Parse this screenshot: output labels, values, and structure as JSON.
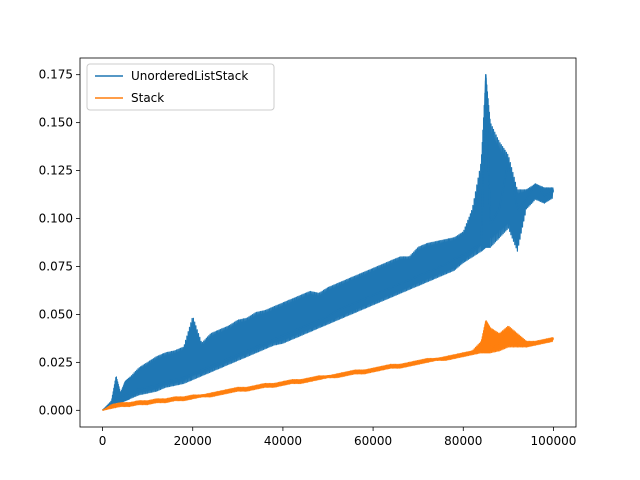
{
  "chart_data": {
    "type": "line",
    "title": "",
    "xlabel": "",
    "ylabel": "",
    "xlim": [
      -5000,
      105000
    ],
    "ylim": [
      -0.0087,
      0.1837
    ],
    "x_ticks": [
      {
        "value": 0,
        "label": "0"
      },
      {
        "value": 20000,
        "label": "20000"
      },
      {
        "value": 40000,
        "label": "40000"
      },
      {
        "value": 60000,
        "label": "60000"
      },
      {
        "value": 80000,
        "label": "80000"
      },
      {
        "value": 100000,
        "label": "100000"
      }
    ],
    "y_ticks": [
      {
        "value": 0.0,
        "label": "0.000"
      },
      {
        "value": 0.025,
        "label": "0.025"
      },
      {
        "value": 0.05,
        "label": "0.050"
      },
      {
        "value": 0.075,
        "label": "0.075"
      },
      {
        "value": 0.1,
        "label": "0.100"
      },
      {
        "value": 0.125,
        "label": "0.125"
      },
      {
        "value": 0.15,
        "label": "0.150"
      },
      {
        "value": 0.175,
        "label": "0.175"
      }
    ],
    "grid": false,
    "legend_position": "top-left",
    "series": [
      {
        "name": "UnorderedListStack",
        "color": "#1f77b4",
        "x": [
          0,
          2000,
          3000,
          4000,
          5000,
          6000,
          8000,
          10000,
          12000,
          14000,
          16000,
          18000,
          20000,
          22000,
          24000,
          26000,
          28000,
          30000,
          32000,
          34000,
          36000,
          38000,
          40000,
          42000,
          44000,
          46000,
          48000,
          50000,
          52000,
          54000,
          56000,
          58000,
          60000,
          62000,
          64000,
          66000,
          68000,
          70000,
          72000,
          74000,
          76000,
          78000,
          80000,
          82000,
          84000,
          85000,
          86000,
          88000,
          90000,
          92000,
          94000,
          96000,
          98000,
          100000
        ],
        "y": [
          0.0,
          0.004,
          0.006,
          0.007,
          0.008,
          0.009,
          0.011,
          0.012,
          0.013,
          0.015,
          0.016,
          0.017,
          0.019,
          0.021,
          0.023,
          0.025,
          0.027,
          0.029,
          0.031,
          0.033,
          0.035,
          0.037,
          0.039,
          0.041,
          0.043,
          0.045,
          0.047,
          0.049,
          0.052,
          0.054,
          0.056,
          0.058,
          0.06,
          0.062,
          0.064,
          0.066,
          0.068,
          0.07,
          0.072,
          0.074,
          0.076,
          0.079,
          0.081,
          0.084,
          0.087,
          0.175,
          0.097,
          0.105,
          0.13,
          0.105,
          0.11,
          0.118,
          0.112,
          0.114
        ],
        "upper": [
          0.0,
          0.005,
          0.018,
          0.009,
          0.015,
          0.017,
          0.022,
          0.025,
          0.028,
          0.03,
          0.031,
          0.033,
          0.049,
          0.035,
          0.04,
          0.042,
          0.044,
          0.047,
          0.048,
          0.051,
          0.052,
          0.054,
          0.056,
          0.058,
          0.06,
          0.062,
          0.061,
          0.064,
          0.066,
          0.068,
          0.07,
          0.072,
          0.074,
          0.076,
          0.078,
          0.08,
          0.08,
          0.085,
          0.087,
          0.088,
          0.089,
          0.09,
          0.093,
          0.105,
          0.13,
          0.175,
          0.15,
          0.14,
          0.133,
          0.115,
          0.115,
          0.118,
          0.116,
          0.116
        ],
        "lower": [
          0.0,
          0.002,
          0.004,
          0.004,
          0.005,
          0.006,
          0.008,
          0.009,
          0.01,
          0.012,
          0.013,
          0.014,
          0.016,
          0.018,
          0.02,
          0.022,
          0.024,
          0.026,
          0.028,
          0.03,
          0.032,
          0.034,
          0.035,
          0.037,
          0.039,
          0.041,
          0.043,
          0.045,
          0.047,
          0.049,
          0.051,
          0.053,
          0.055,
          0.057,
          0.059,
          0.061,
          0.063,
          0.065,
          0.067,
          0.069,
          0.071,
          0.073,
          0.077,
          0.08,
          0.083,
          0.085,
          0.085,
          0.09,
          0.095,
          0.083,
          0.105,
          0.11,
          0.108,
          0.111
        ]
      },
      {
        "name": "Stack",
        "color": "#ff7f0e",
        "x": [
          0,
          2000,
          4000,
          6000,
          8000,
          10000,
          12000,
          14000,
          16000,
          18000,
          20000,
          22000,
          24000,
          26000,
          28000,
          30000,
          32000,
          34000,
          36000,
          38000,
          40000,
          42000,
          44000,
          46000,
          48000,
          50000,
          52000,
          54000,
          56000,
          58000,
          60000,
          62000,
          64000,
          66000,
          68000,
          70000,
          72000,
          74000,
          76000,
          78000,
          80000,
          82000,
          84000,
          85000,
          86000,
          88000,
          90000,
          92000,
          94000,
          96000,
          98000,
          100000
        ],
        "y": [
          0.0,
          0.002,
          0.003,
          0.003,
          0.004,
          0.004,
          0.005,
          0.005,
          0.006,
          0.006,
          0.007,
          0.008,
          0.008,
          0.009,
          0.01,
          0.011,
          0.011,
          0.012,
          0.013,
          0.013,
          0.014,
          0.015,
          0.015,
          0.016,
          0.017,
          0.018,
          0.018,
          0.019,
          0.02,
          0.02,
          0.021,
          0.022,
          0.023,
          0.023,
          0.024,
          0.025,
          0.026,
          0.027,
          0.027,
          0.028,
          0.029,
          0.03,
          0.031,
          0.046,
          0.032,
          0.035,
          0.042,
          0.034,
          0.034,
          0.035,
          0.036,
          0.037
        ],
        "upper": [
          0.0,
          0.003,
          0.004,
          0.004,
          0.005,
          0.005,
          0.006,
          0.006,
          0.007,
          0.007,
          0.008,
          0.008,
          0.009,
          0.01,
          0.011,
          0.012,
          0.012,
          0.013,
          0.014,
          0.014,
          0.015,
          0.016,
          0.016,
          0.017,
          0.018,
          0.018,
          0.019,
          0.02,
          0.021,
          0.021,
          0.022,
          0.023,
          0.024,
          0.024,
          0.025,
          0.026,
          0.027,
          0.027,
          0.028,
          0.029,
          0.03,
          0.031,
          0.036,
          0.047,
          0.043,
          0.04,
          0.044,
          0.04,
          0.036,
          0.036,
          0.037,
          0.038
        ],
        "lower": [
          0.0,
          0.001,
          0.002,
          0.002,
          0.003,
          0.003,
          0.004,
          0.004,
          0.005,
          0.005,
          0.006,
          0.007,
          0.007,
          0.008,
          0.009,
          0.01,
          0.01,
          0.011,
          0.012,
          0.012,
          0.013,
          0.014,
          0.014,
          0.015,
          0.016,
          0.017,
          0.017,
          0.018,
          0.019,
          0.019,
          0.02,
          0.021,
          0.022,
          0.022,
          0.023,
          0.024,
          0.025,
          0.026,
          0.026,
          0.027,
          0.028,
          0.029,
          0.03,
          0.03,
          0.03,
          0.031,
          0.033,
          0.033,
          0.033,
          0.034,
          0.035,
          0.036
        ]
      }
    ]
  }
}
